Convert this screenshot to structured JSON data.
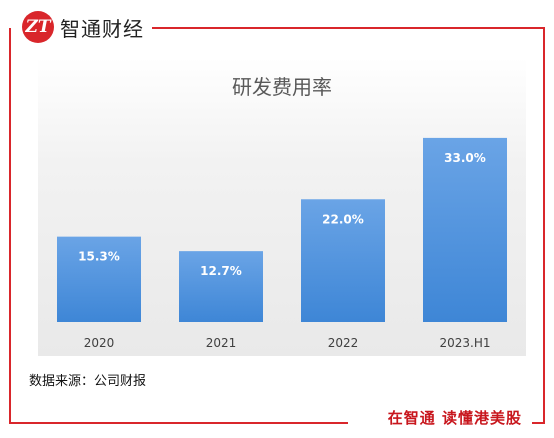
{
  "brand": {
    "logo_glyph": "ZT",
    "name": "智通财经"
  },
  "source_note": "数据来源：公司财报",
  "slogan": "在智通  读懂港美股",
  "colors": {
    "frame": "#d9262b",
    "bar": "#3e86d6",
    "bar_light": "#6aa4e6",
    "bar_text": "#ffffff"
  },
  "chart_data": {
    "type": "bar",
    "title": "研发费用率",
    "categories": [
      "2020",
      "2021",
      "2022",
      "2023.H1"
    ],
    "values": [
      15.3,
      12.7,
      22.0,
      33.0
    ],
    "value_labels": [
      "15.3%",
      "12.7%",
      "22.0%",
      "33.0%"
    ],
    "ylim": [
      0,
      38
    ],
    "grid": false,
    "legend": "none"
  }
}
